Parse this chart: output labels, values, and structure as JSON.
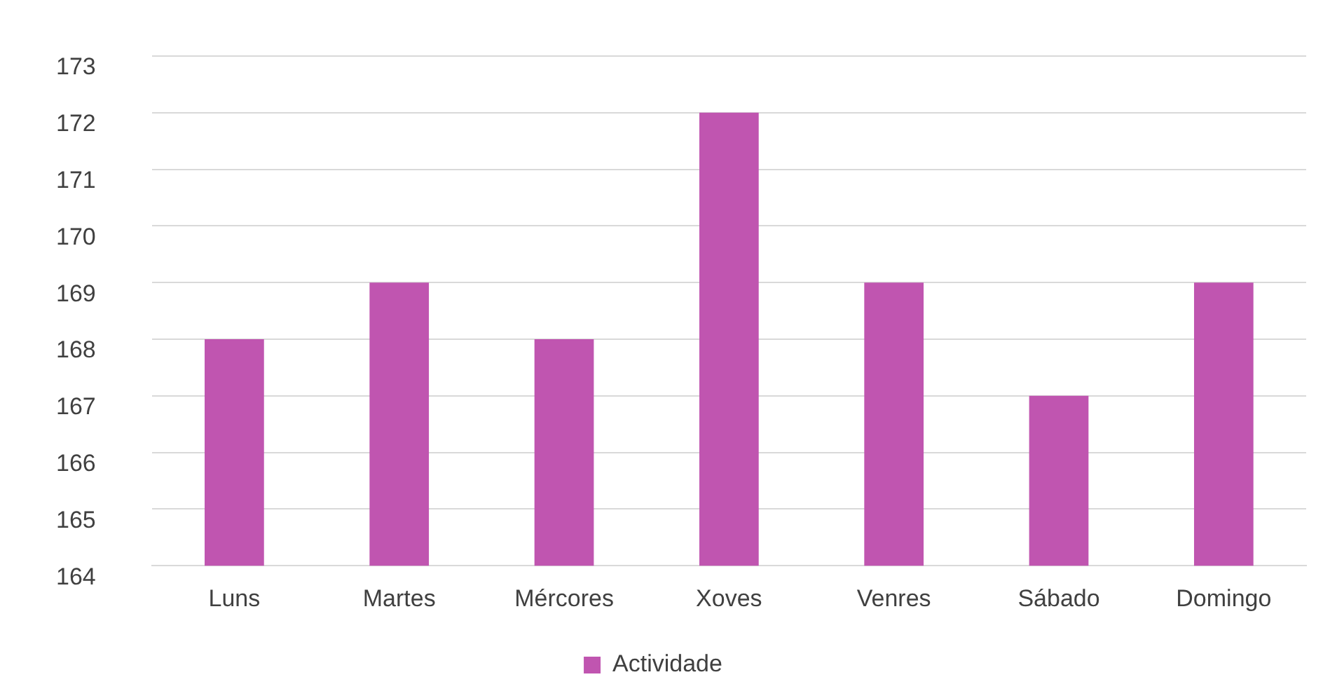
{
  "chart_data": {
    "type": "bar",
    "categories": [
      "Luns",
      "Martes",
      "Mércores",
      "Xoves",
      "Venres",
      "Sábado",
      "Domingo"
    ],
    "series": [
      {
        "name": "Actividade",
        "color": "#c055b0",
        "values": [
          168,
          169,
          168,
          172,
          169,
          167,
          169
        ]
      }
    ],
    "ylim": [
      164,
      173
    ],
    "yticks": [
      164,
      165,
      166,
      167,
      168,
      169,
      170,
      171,
      172,
      173
    ],
    "grid": "y",
    "legend": "bottom"
  }
}
